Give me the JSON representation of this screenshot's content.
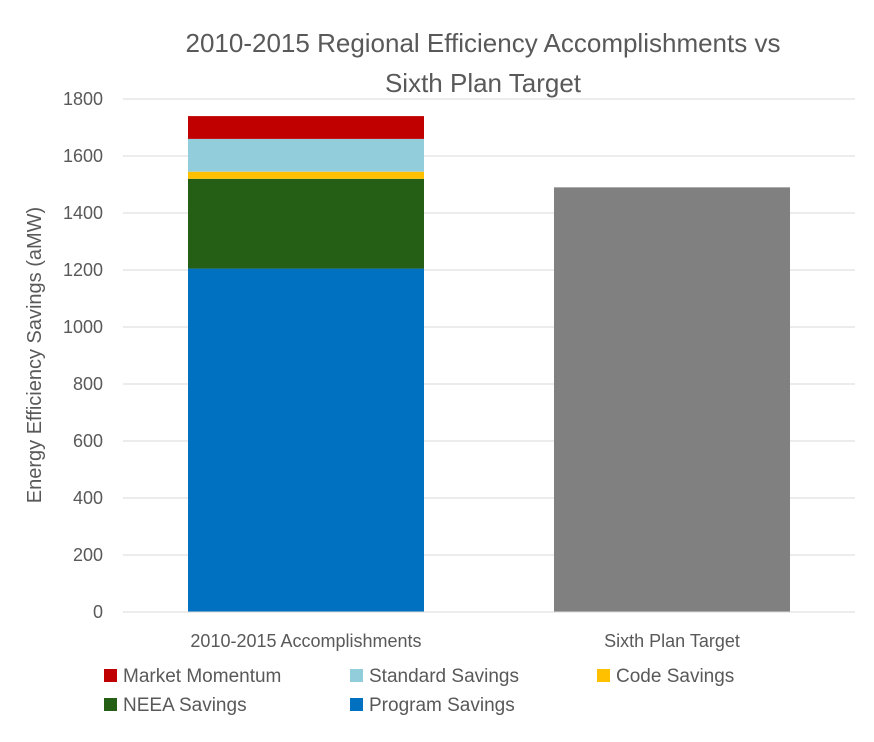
{
  "chart_data": {
    "type": "bar",
    "stacked": true,
    "title_lines": [
      "2010-2015 Regional Efficiency Accomplishments vs",
      "Sixth Plan Target"
    ],
    "ylabel": "Energy Efficiency Savings (aMW)",
    "xlabel": "",
    "ylim": [
      0,
      1800
    ],
    "yticks": [
      0,
      200,
      400,
      600,
      800,
      1000,
      1200,
      1400,
      1600,
      1800
    ],
    "grid": true,
    "legend_position": "bottom",
    "categories": [
      "2010-2015 Accomplishments",
      "Sixth Plan Target"
    ],
    "series": [
      {
        "name": "Program Savings",
        "color": "#0070c0",
        "values": [
          1205,
          0
        ]
      },
      {
        "name": "NEEA Savings",
        "color": "#255e15",
        "values": [
          315,
          0
        ]
      },
      {
        "name": "Code Savings",
        "color": "#ffc000",
        "values": [
          25,
          0
        ]
      },
      {
        "name": "Standard Savings",
        "color": "#92cddc",
        "values": [
          115,
          0
        ]
      },
      {
        "name": "Market Momentum",
        "color": "#c00000",
        "values": [
          80,
          0
        ]
      },
      {
        "name": "",
        "color": "#808080",
        "values": [
          0,
          1490
        ]
      }
    ],
    "legend_order": [
      "Market Momentum",
      "Standard Savings",
      "Code Savings",
      "NEEA Savings",
      "Program Savings"
    ]
  }
}
